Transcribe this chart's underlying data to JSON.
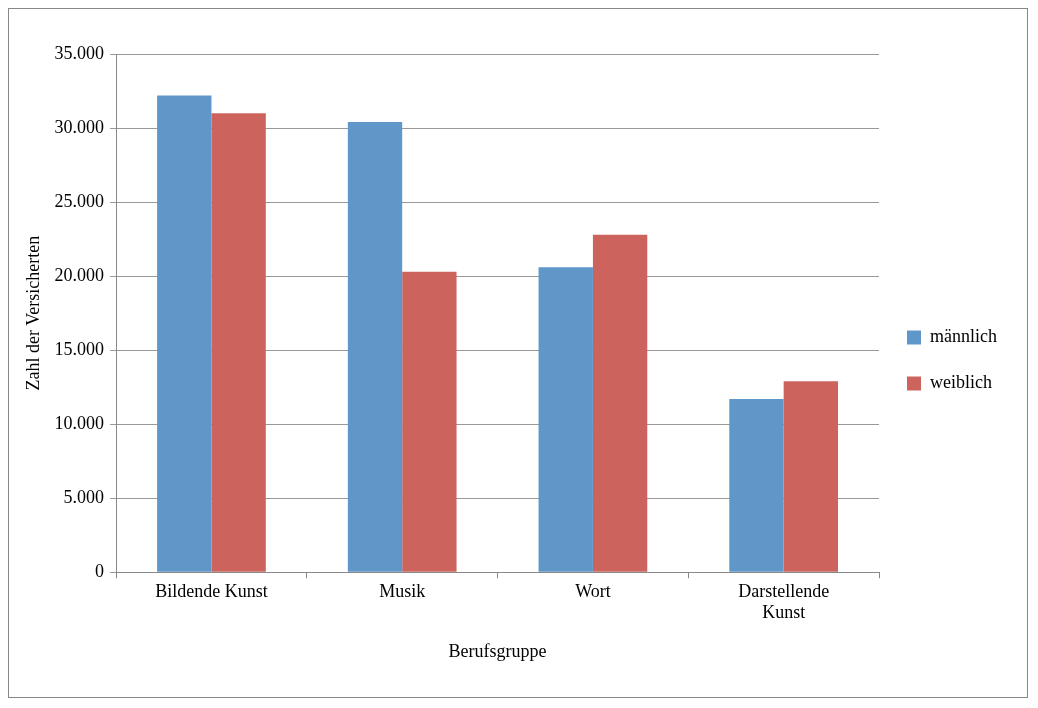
{
  "chart_data": {
    "type": "bar",
    "xlabel": "Berufsgruppe",
    "ylabel": "Zahl der Versicherten",
    "categories": [
      "Bildende Kunst",
      "Musik",
      "Wort",
      "Darstellende Kunst"
    ],
    "series": [
      {
        "name": "männlich",
        "color": "#6097c9",
        "values": [
          32200,
          30400,
          20600,
          11700
        ]
      },
      {
        "name": "weiblich",
        "color": "#cc645d",
        "values": [
          31000,
          20300,
          22800,
          12900
        ]
      }
    ],
    "ylim": [
      0,
      35000
    ],
    "yticks": [
      0,
      {
        "value": 5000,
        "label": "5.000"
      },
      {
        "value": 10000,
        "label": "10.000"
      },
      {
        "value": 15000,
        "label": "15.000"
      },
      {
        "value": 20000,
        "label": "20.000"
      },
      {
        "value": 25000,
        "label": "25.000"
      },
      {
        "value": 30000,
        "label": "30.000"
      },
      {
        "value": 35000,
        "label": "35.000"
      }
    ],
    "grid": "y",
    "legend": "right"
  }
}
